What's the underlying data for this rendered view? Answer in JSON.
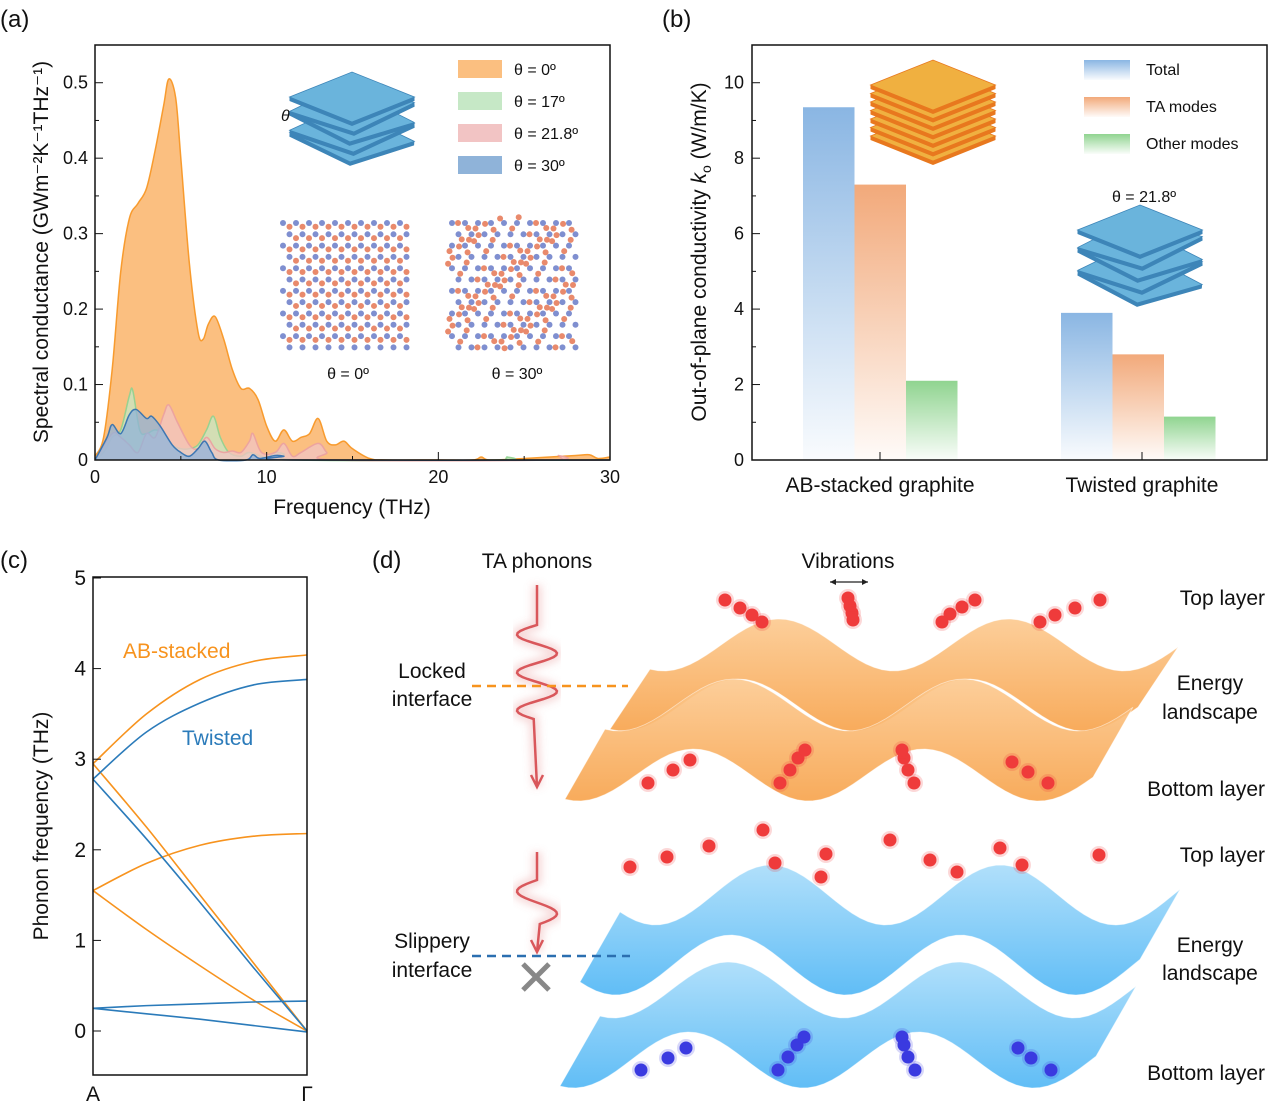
{
  "panel_labels": {
    "a": "(a)",
    "b": "(b)",
    "c": "(c)",
    "d": "(d)"
  },
  "chart_data": [
    {
      "id": "a",
      "type": "area",
      "xlabel": "Frequency (THz)",
      "ylabel": "Spectral conductance (GWm⁻²K⁻¹THz⁻¹)",
      "xlim": [
        0,
        30
      ],
      "ylim": [
        0,
        0.55
      ],
      "xticks": [
        0,
        10,
        20,
        30
      ],
      "yticks": [
        0,
        0.1,
        0.2,
        0.3,
        0.4,
        0.5
      ],
      "ytick_labels": [
        "0",
        "0.1",
        "0.2",
        "0.3",
        "0.4",
        "0.5"
      ],
      "legend_position": "top-right",
      "series": [
        {
          "name": "θ = 0º",
          "color": "#f7931e",
          "fill": "#fbbf80",
          "x": [
            0,
            0.5,
            1,
            1.5,
            2,
            2.5,
            3,
            3.5,
            4,
            4.3,
            4.7,
            5,
            5.5,
            6,
            6.3,
            6.6,
            7,
            7.5,
            8,
            8.5,
            9,
            9.5,
            10,
            10.5,
            11,
            11.5,
            12,
            12.5,
            13,
            13.5,
            14,
            14.5,
            15,
            16,
            17,
            20,
            22,
            22.5,
            23,
            25,
            28,
            28.8,
            29.3,
            30
          ],
          "y": [
            0.005,
            0.03,
            0.12,
            0.25,
            0.32,
            0.34,
            0.36,
            0.41,
            0.47,
            0.505,
            0.48,
            0.4,
            0.26,
            0.17,
            0.16,
            0.18,
            0.19,
            0.16,
            0.12,
            0.095,
            0.095,
            0.08,
            0.045,
            0.025,
            0.04,
            0.025,
            0.03,
            0.035,
            0.055,
            0.025,
            0.02,
            0.025,
            0.015,
            0.002,
            0,
            0,
            0,
            0.004,
            0,
            0.002,
            0.006,
            0.007,
            0.002,
            0.004
          ]
        },
        {
          "name": "θ = 17º",
          "color": "#8fd18f",
          "fill": "#c6e8c6",
          "x": [
            0,
            0.5,
            1,
            1.5,
            2,
            2.2,
            2.6,
            3,
            3.5,
            4,
            4.5,
            5,
            5.5,
            6,
            6.5,
            6.9,
            7.3,
            7.8,
            8.5,
            9,
            10,
            10.5,
            11,
            12,
            23.5,
            24,
            24.5,
            30
          ],
          "y": [
            0,
            0.01,
            0.03,
            0.04,
            0.085,
            0.092,
            0.04,
            0.035,
            0.04,
            0.035,
            0.02,
            0.015,
            0.015,
            0.02,
            0.04,
            0.058,
            0.03,
            0.01,
            0.005,
            0.01,
            0.003,
            0.01,
            0.008,
            0,
            0,
            0.004,
            0,
            0
          ]
        },
        {
          "name": "θ = 21.8º",
          "color": "#eba0a0",
          "fill": "#f2c4c4",
          "x": [
            0,
            1,
            1.5,
            2,
            2.5,
            3,
            3.5,
            4,
            4.3,
            4.8,
            5.5,
            6,
            6.5,
            7,
            7.5,
            8,
            8.5,
            9,
            9.2,
            9.7,
            10.5,
            11,
            11.5,
            12,
            13,
            13.5,
            14,
            26.5,
            27,
            27.5,
            30
          ],
          "y": [
            0,
            0.035,
            0.03,
            0.02,
            0.01,
            0.035,
            0.03,
            0.06,
            0.073,
            0.05,
            0.02,
            0.015,
            0.03,
            0.015,
            0.01,
            0.012,
            0.01,
            0.025,
            0.035,
            0.01,
            0.01,
            0.022,
            0.005,
            0.01,
            0.022,
            0.01,
            0,
            0,
            0.006,
            0,
            0
          ]
        },
        {
          "name": "θ = 30º",
          "color": "#2f6fb0",
          "fill": "#8fb3d9",
          "x": [
            0,
            0.7,
            1,
            1.5,
            2,
            2.4,
            3,
            3.3,
            3.8,
            4.5,
            5,
            5.5,
            6,
            6.4,
            6.8,
            7.2,
            8.8,
            9.2,
            9.6,
            10.5,
            11,
            11.5,
            30
          ],
          "y": [
            0,
            0.03,
            0.047,
            0.035,
            0.06,
            0.067,
            0.055,
            0.058,
            0.045,
            0.02,
            0.01,
            0.005,
            0.015,
            0.025,
            0.01,
            0,
            0,
            0.007,
            0.002,
            0.006,
            0.005,
            0,
            0
          ]
        }
      ],
      "annotations": {
        "stack_theta": "θ",
        "lattice_0": "θ = 0º",
        "lattice_30": "θ = 30º"
      }
    },
    {
      "id": "b",
      "type": "bar",
      "ylabel_prefix": "Out-of-plane conductivity ",
      "ylabel_symbol": "k",
      "ylabel_sub": "o",
      "ylabel_suffix": " (W/m/K)",
      "ylim": [
        0,
        11
      ],
      "yticks": [
        0,
        2,
        4,
        6,
        8,
        10
      ],
      "categories": [
        "AB-stacked graphite",
        "Twisted graphite"
      ],
      "legend_position": "top-right",
      "series": [
        {
          "name": "Total",
          "color": "#8ab6e3",
          "values": [
            9.35,
            3.9
          ]
        },
        {
          "name": "TA modes",
          "color": "#f2a97a",
          "values": [
            7.3,
            2.8
          ]
        },
        {
          "name": "Other modes",
          "color": "#90d490",
          "values": [
            2.1,
            1.15
          ]
        }
      ],
      "annotations": {
        "twisted_angle": "θ = 21.8º"
      }
    },
    {
      "id": "c",
      "type": "line",
      "ylabel": "Phonon frequency (THz)",
      "ylim": [
        -0.5,
        5
      ],
      "yticks": [
        0,
        1,
        2,
        3,
        4,
        5
      ],
      "xtick_labels": [
        "A",
        "Γ"
      ],
      "x": [
        0,
        0.25,
        0.5,
        0.75,
        1
      ],
      "series": [
        {
          "group": "AB-stacked",
          "color": "#f7931e",
          "y": [
            2.95,
            3.5,
            3.88,
            4.08,
            4.15
          ]
        },
        {
          "group": "AB-stacked",
          "color": "#f7931e",
          "y": [
            2.95,
            2.25,
            1.5,
            0.75,
            0
          ]
        },
        {
          "group": "AB-stacked",
          "color": "#f7931e",
          "y": [
            1.55,
            1.85,
            2.05,
            2.15,
            2.18
          ]
        },
        {
          "group": "AB-stacked",
          "color": "#f7931e",
          "y": [
            1.55,
            1.12,
            0.72,
            0.34,
            0
          ]
        },
        {
          "group": "Twisted",
          "color": "#2b7bba",
          "y": [
            2.78,
            3.3,
            3.62,
            3.82,
            3.88
          ]
        },
        {
          "group": "Twisted",
          "color": "#2b7bba",
          "y": [
            2.78,
            2.12,
            1.42,
            0.7,
            0
          ]
        },
        {
          "group": "Twisted",
          "color": "#2b7bba",
          "y": [
            0.25,
            0.28,
            0.3,
            0.32,
            0.33
          ]
        },
        {
          "group": "Twisted",
          "color": "#2b7bba",
          "y": [
            0.25,
            0.19,
            0.13,
            0.06,
            -0.01
          ]
        }
      ],
      "labels": {
        "ab": "AB-stacked",
        "twisted": "Twisted"
      }
    }
  ],
  "schematic": {
    "ta_phonons": "TA phonons",
    "vibrations": "Vibrations",
    "top_layer": "Top layer",
    "energy": "Energy",
    "landscape": "landscape",
    "bottom_layer": "Bottom layer",
    "locked": "Locked",
    "slippery": "Slippery",
    "interface": "interface",
    "colors": {
      "locked": "#f7931e",
      "slippery": "#2b6fb0",
      "atoms_top": "#ef3b3b",
      "atoms_bottom_twisted": "#3a3ae0"
    }
  }
}
